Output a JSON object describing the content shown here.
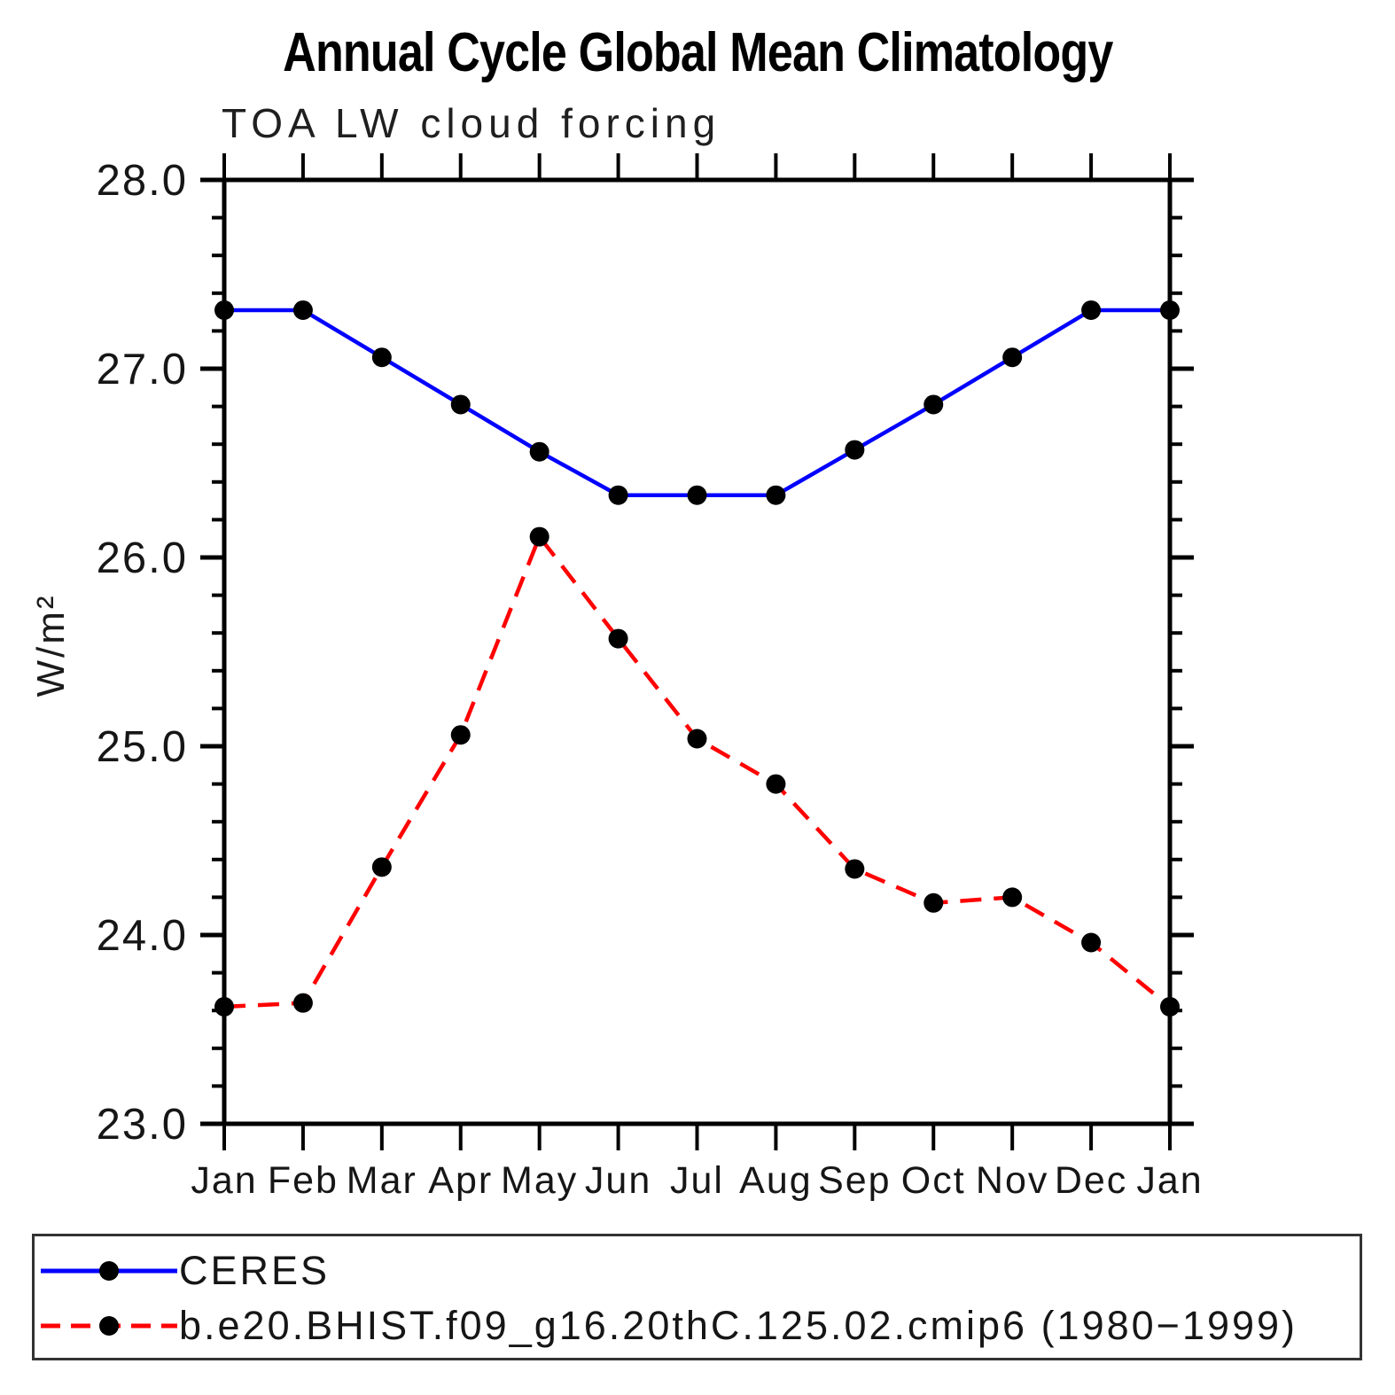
{
  "title": "Annual Cycle Global Mean Climatology",
  "chart_data": {
    "type": "line",
    "title": "Annual Cycle Global Mean Climatology",
    "subtitle": "TOA LW cloud forcing",
    "xlabel": "",
    "ylabel": "W/m²",
    "categories": [
      "Jan",
      "Feb",
      "Mar",
      "Apr",
      "May",
      "Jun",
      "Jul",
      "Aug",
      "Sep",
      "Oct",
      "Nov",
      "Dec",
      "Jan"
    ],
    "ylim": [
      23.0,
      28.0
    ],
    "ytick_interval": 1.0,
    "yminor_interval": 0.2,
    "ytick_labels": [
      "23.0",
      "24.0",
      "25.0",
      "26.0",
      "27.0",
      "28.0"
    ],
    "grid": false,
    "legend_position": "bottom-left-box",
    "series": [
      {
        "name": "CERES",
        "color": "#0000ff",
        "line_style": "solid",
        "marker": "circle",
        "marker_color": "#000000",
        "values": [
          27.31,
          27.31,
          27.06,
          26.81,
          26.56,
          26.33,
          26.33,
          26.33,
          26.57,
          26.81,
          27.06,
          27.31,
          27.31
        ]
      },
      {
        "name": "b.e20.BHIST.f09_g16.20thC.125.02.cmip6 (1980−1999)",
        "color": "#ff0000",
        "line_style": "dashed",
        "marker": "circle",
        "marker_color": "#000000",
        "values": [
          23.62,
          23.64,
          24.36,
          25.06,
          26.11,
          25.57,
          25.04,
          24.8,
          24.35,
          24.17,
          24.2,
          23.96,
          23.62
        ]
      }
    ]
  }
}
